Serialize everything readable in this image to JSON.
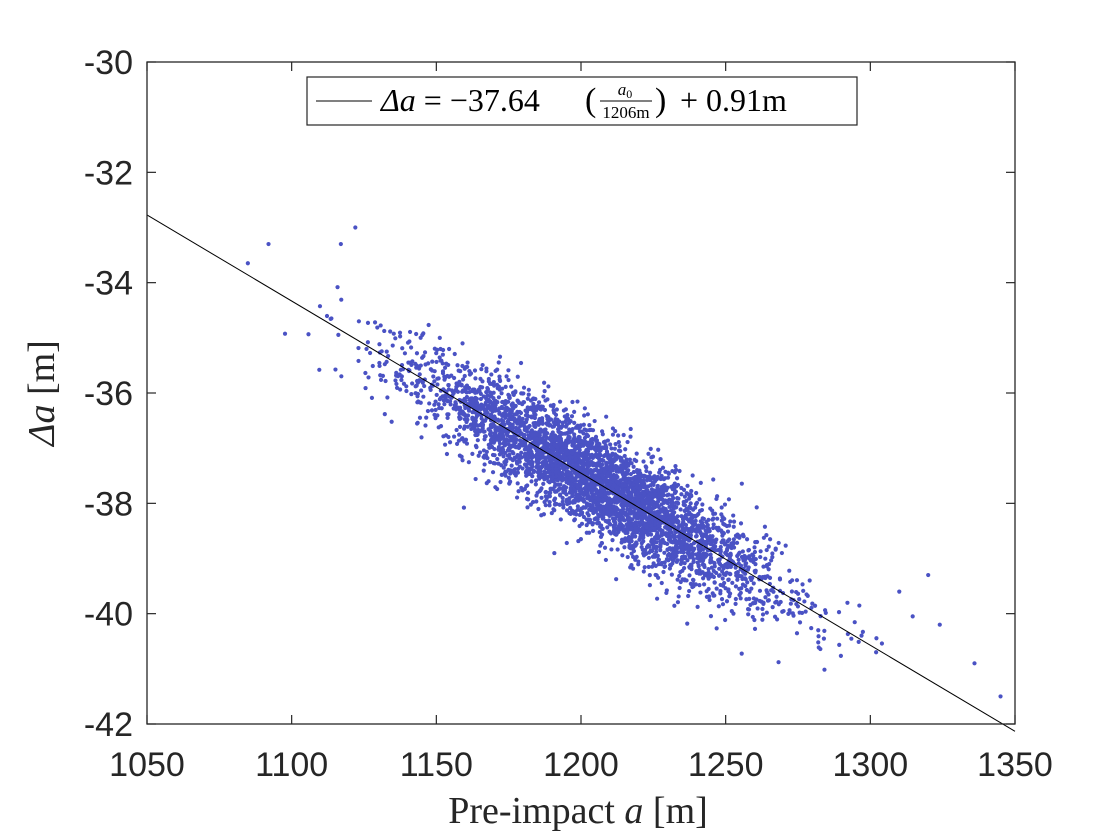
{
  "chart_data": {
    "type": "scatter",
    "xlabel": {
      "prefix": "Pre-impact ",
      "var": "a",
      "unit": " [m]"
    },
    "ylabel": {
      "var": "Δa",
      "unit": " [m]"
    },
    "xlim": [
      1050,
      1350
    ],
    "ylim": [
      -42,
      -30
    ],
    "xticks": [
      1050,
      1100,
      1150,
      1200,
      1250,
      1300,
      1350
    ],
    "yticks": [
      -30,
      -32,
      -34,
      -36,
      -38,
      -40,
      -42
    ],
    "xtick_labels": [
      "1050",
      "1100",
      "1150",
      "1200",
      "1250",
      "1300",
      "1350"
    ],
    "ytick_labels": [
      "-30",
      "-32",
      "-34",
      "-36",
      "-38",
      "-40",
      "-42"
    ],
    "grid": false,
    "legend_placement": "top",
    "scatter_color": "#4a52c4",
    "fit_color": "#000000",
    "fit_line": {
      "slope": -0.0312,
      "at_1206": -37.64,
      "x_range": [
        1050,
        1350
      ],
      "legend": {
        "lhs": "Δa",
        "rhs_coeff": "−37.64",
        "frac_num": "a",
        "frac_num_sub": "0",
        "frac_den": "1206m",
        "rhs_tail": "+ 0.91m"
      }
    },
    "cluster_center": {
      "x": 1206,
      "y": -36.8
    },
    "cluster_sd": {
      "x": 30,
      "y_residual": 0.45
    },
    "visible_outliers": [
      {
        "x": 1092,
        "y": -33.3
      },
      {
        "x": 1122,
        "y": -33.0
      },
      {
        "x": 1117,
        "y": -33.3
      },
      {
        "x": 1336,
        "y": -40.9
      },
      {
        "x": 1345,
        "y": -41.5
      },
      {
        "x": 1324,
        "y": -40.2
      },
      {
        "x": 1302,
        "y": -40.7
      },
      {
        "x": 1310,
        "y": -39.6
      },
      {
        "x": 1320,
        "y": -39.3
      },
      {
        "x": 1282,
        "y": -40.3
      }
    ]
  }
}
